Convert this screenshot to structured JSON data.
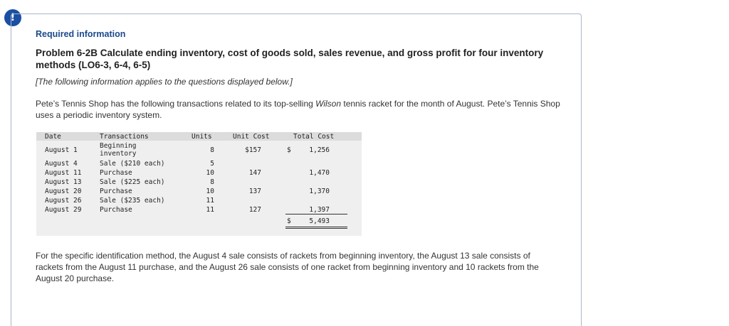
{
  "badge": "!",
  "heading": "Required information",
  "title": "Problem 6-2B Calculate ending inventory, cost of goods sold, sales revenue, and gross profit for four inventory methods (LO6-3, 6-4, 6-5)",
  "note": "[The following information applies to the questions displayed below.]",
  "intro": {
    "part1": "Pete’s Tennis Shop has the following transactions related to its top-selling ",
    "brand": "Wilson",
    "part2": " tennis racket for the month of August. Pete’s Tennis Shop uses a periodic inventory system."
  },
  "table": {
    "headers": {
      "date": "Date",
      "transactions": "Transactions",
      "units": "Units",
      "unit_cost": "Unit Cost",
      "total_cost": "Total Cost"
    },
    "rows": [
      {
        "date": "August 1",
        "transaction": "Beginning inventory",
        "units": "8",
        "unit_cost": "$157",
        "total_cost": "1,256"
      },
      {
        "date": "August 4",
        "transaction": "Sale ($210 each)",
        "units": "5",
        "unit_cost": "",
        "total_cost": ""
      },
      {
        "date": "August 11",
        "transaction": "Purchase",
        "units": "10",
        "unit_cost": "147",
        "total_cost": "1,470"
      },
      {
        "date": "August 13",
        "transaction": "Sale ($225 each)",
        "units": "8",
        "unit_cost": "",
        "total_cost": ""
      },
      {
        "date": "August 20",
        "transaction": "Purchase",
        "units": "10",
        "unit_cost": "137",
        "total_cost": "1,370"
      },
      {
        "date": "August 26",
        "transaction": "Sale ($235 each)",
        "units": "11",
        "unit_cost": "",
        "total_cost": ""
      },
      {
        "date": "August 29",
        "transaction": "Purchase",
        "units": "11",
        "unit_cost": "127",
        "total_cost": "1,397"
      }
    ],
    "first_dollar": "$",
    "total_dollar": "$",
    "total": "5,493"
  },
  "specific_id": "For the specific identification method, the August 4 sale consists of rackets from beginning inventory, the August 13 sale consists of rackets from the August 11 purchase, and the August 26 sale consists of one racket from beginning inventory and 10 rackets from the August 20 purchase."
}
